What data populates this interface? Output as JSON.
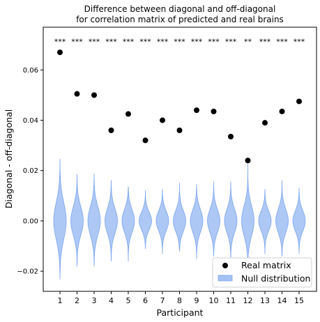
{
  "chart_data": {
    "type": "scatter",
    "title_line1": "Difference between diagonal and off-diagonal",
    "title_line2": "for correlation matrix of predicted and real brains",
    "xlabel": "Participant",
    "ylabel": "Diagonal - off-diagonal",
    "categories": [
      "1",
      "2",
      "3",
      "4",
      "5",
      "6",
      "7",
      "8",
      "9",
      "10",
      "11",
      "12",
      "13",
      "14",
      "15"
    ],
    "ylim": [
      -0.028,
      0.077
    ],
    "yticks": [
      -0.02,
      0.0,
      0.02,
      0.04,
      0.06
    ],
    "ytick_labels": [
      "−0.02",
      "0.00",
      "0.02",
      "0.04",
      "0.06"
    ],
    "series": [
      {
        "name": "Real matrix",
        "kind": "points",
        "color": "#000000",
        "values": [
          0.067,
          0.0505,
          0.05,
          0.036,
          0.0425,
          0.032,
          0.04,
          0.036,
          0.044,
          0.0435,
          0.0335,
          0.024,
          0.039,
          0.0435,
          0.0475
        ]
      },
      {
        "name": "Null distribution",
        "kind": "violin",
        "color": "#a4c2f4",
        "edge_color": "#7ba4ec",
        "min": [
          -0.023,
          -0.018,
          -0.018,
          -0.016,
          -0.016,
          -0.011,
          -0.013,
          -0.012,
          -0.015,
          -0.014,
          -0.015,
          -0.015,
          -0.013,
          -0.014,
          -0.013
        ],
        "max": [
          0.0245,
          0.0185,
          0.0185,
          0.016,
          0.0135,
          0.012,
          0.0125,
          0.015,
          0.0145,
          0.0155,
          0.0155,
          0.0235,
          0.0125,
          0.016,
          0.013
        ]
      }
    ],
    "significance": [
      "***",
      "***",
      "***",
      "***",
      "***",
      "***",
      "***",
      "***",
      "***",
      "***",
      "***",
      "**",
      "***",
      "***",
      "***"
    ],
    "significance_y": 0.0713,
    "legend": {
      "placement": "lower-right",
      "entries": [
        "Real matrix",
        "Null distribution"
      ]
    },
    "grid": false
  }
}
